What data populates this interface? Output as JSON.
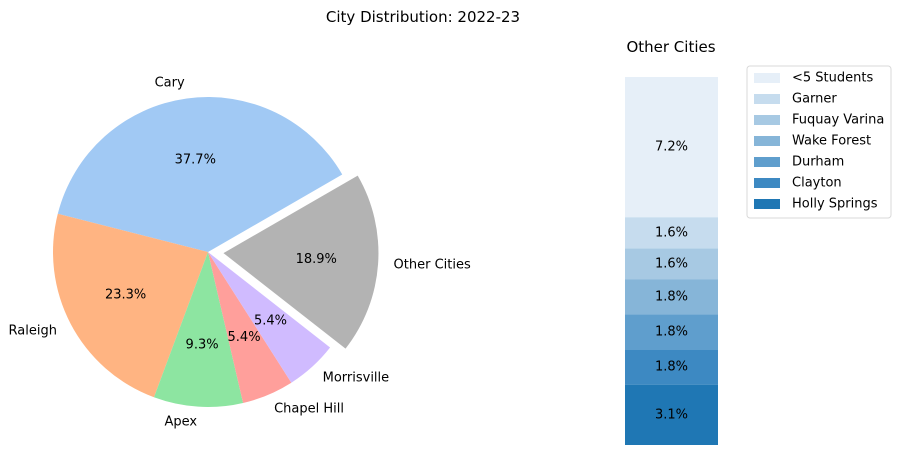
{
  "chart_data": [
    {
      "type": "pie",
      "title": "City Distribution: 2022-23",
      "slices": [
        {
          "label": "Cary",
          "value": 37.7,
          "pct_label": "37.7%",
          "color": "#a1c9f4",
          "explode": false
        },
        {
          "label": "Raleigh",
          "value": 23.3,
          "pct_label": "23.3%",
          "color": "#ffb482",
          "explode": false
        },
        {
          "label": "Apex",
          "value": 9.3,
          "pct_label": "9.3%",
          "color": "#8de5a1",
          "explode": false
        },
        {
          "label": "Chapel Hill",
          "value": 5.4,
          "pct_label": "5.4%",
          "color": "#ff9f9b",
          "explode": false
        },
        {
          "label": "Morrisville",
          "value": 5.4,
          "pct_label": "5.4%",
          "color": "#d0bbff",
          "explode": false
        },
        {
          "label": "Other Cities",
          "value": 18.9,
          "pct_label": "18.9%",
          "color": "#b3b3b3",
          "explode": true
        }
      ]
    },
    {
      "type": "bar",
      "stacked": true,
      "title": "Other Cities",
      "legend_position": "right",
      "segments_bottom_to_top": [
        {
          "label": "Holly Springs",
          "value": 3.1,
          "value_label": "3.1%",
          "color": "#1f77b4"
        },
        {
          "label": "Clayton",
          "value": 1.8,
          "value_label": "1.8%",
          "color": "#3d89c2"
        },
        {
          "label": "Durham",
          "value": 1.8,
          "value_label": "1.8%",
          "color": "#5f9ecd"
        },
        {
          "label": "Wake Forest",
          "value": 1.8,
          "value_label": "1.8%",
          "color": "#86b5d8"
        },
        {
          "label": "Fuquay Varina",
          "value": 1.6,
          "value_label": "1.6%",
          "color": "#a7c9e3"
        },
        {
          "label": "Garner",
          "value": 1.6,
          "value_label": "1.6%",
          "color": "#c6dcee"
        },
        {
          "label": "<5 Students",
          "value": 7.2,
          "value_label": "7.2%",
          "color": "#e6eff8"
        }
      ]
    }
  ]
}
